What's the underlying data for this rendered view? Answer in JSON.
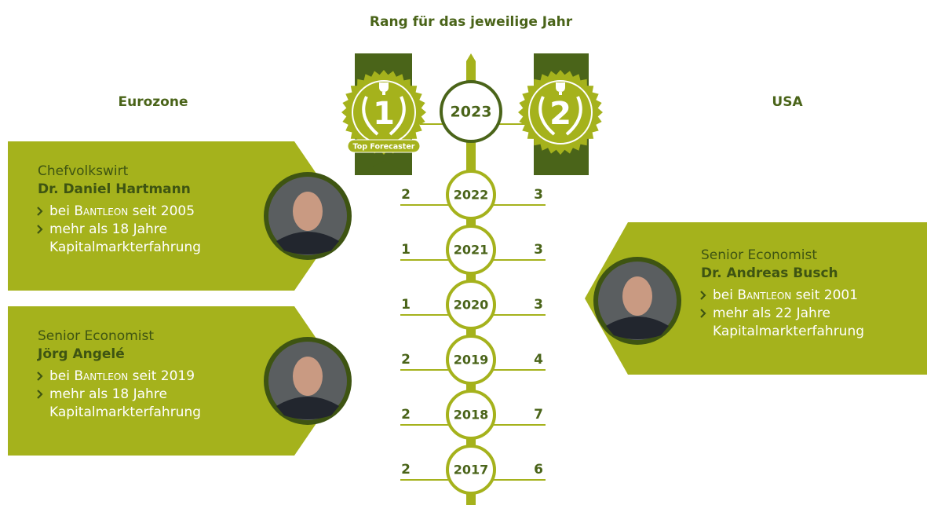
{
  "title": "Rang für das jeweilige Jahr",
  "left_region": "Eurozone",
  "right_region": "USA",
  "badges": [
    {
      "rank": 1,
      "label": "Top Forecaster"
    },
    {
      "rank": 2
    }
  ],
  "timeline": [
    {
      "year": 2023
    },
    {
      "year": 2022,
      "left": 2,
      "right": 3
    },
    {
      "year": 2021,
      "left": 1,
      "right": 3
    },
    {
      "year": 2020,
      "left": 1,
      "right": 3
    },
    {
      "year": 2019,
      "left": 2,
      "right": 4
    },
    {
      "year": 2018,
      "left": 2,
      "right": 7
    },
    {
      "year": 2017,
      "left": 2,
      "right": 6
    }
  ],
  "profiles": [
    {
      "role": "Chefvolkswirt",
      "name": "Dr. Daniel Hartmann",
      "bullets": [
        {
          "prefix": "bei",
          "company": "Bantleon",
          "suffix": "seit 2005"
        },
        {
          "lines": [
            "mehr als 18 Jahre",
            "Kapitalmarkterfahrung"
          ]
        }
      ]
    },
    {
      "role": "Senior Economist",
      "name": "Jörg Angelé",
      "bullets": [
        {
          "prefix": "bei",
          "company": "Bantleon",
          "suffix": "seit 2019"
        },
        {
          "lines": [
            "mehr als 18 Jahre",
            "Kapitalmarkterfahrung"
          ]
        }
      ]
    },
    {
      "role": "Senior Economist",
      "name": "Dr. Andreas Busch",
      "bullets": [
        {
          "prefix": "bei",
          "company": "Bantleon",
          "suffix": "seit 2001"
        },
        {
          "lines": [
            "mehr als 22 Jahre",
            "Kapitalmarkterfahrung"
          ]
        }
      ]
    }
  ]
}
